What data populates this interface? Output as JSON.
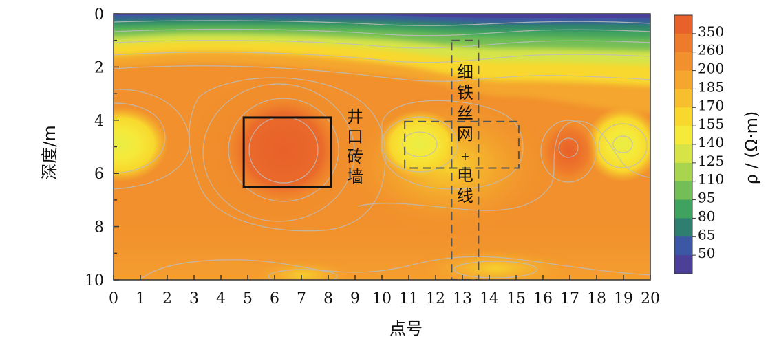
{
  "chart_data": {
    "type": "heatmap",
    "xlabel": "点号",
    "ylabel": "深度/m",
    "colorbar_label": "ρ / (Ω·m)",
    "xlim": [
      0,
      20
    ],
    "ylim": [
      10,
      0
    ],
    "x_ticks": [
      "0",
      "1",
      "2",
      "3",
      "4",
      "5",
      "6",
      "7",
      "8",
      "9",
      "10",
      "11",
      "12",
      "13",
      "14",
      "15",
      "16",
      "17",
      "18",
      "19",
      "20"
    ],
    "y_ticks": [
      "0",
      "2",
      "4",
      "6",
      "8",
      "10"
    ],
    "colorbar_levels": [
      "350",
      "260",
      "200",
      "185",
      "170",
      "155",
      "140",
      "125",
      "110",
      "95",
      "80",
      "65",
      "50"
    ],
    "colorbar_colors": [
      "#E8602A",
      "#EE7A2B",
      "#F1902C",
      "#F4A62E",
      "#F7BF2E",
      "#F8D82D",
      "#F5EA3A",
      "#D6E448",
      "#A9D44E",
      "#73BE57",
      "#3FA25E",
      "#2E7F6F",
      "#3C57A3",
      "#4B3F98"
    ],
    "annotations": [
      {
        "name": "well-brick-wall",
        "text": "井口砖墙",
        "style": "solid",
        "x0": 4.85,
        "x1": 8.1,
        "y0": 3.9,
        "y1": 6.5
      },
      {
        "name": "wire-mesh-horizontal",
        "text": "",
        "style": "dashed",
        "x0": 10.85,
        "x1": 15.1,
        "y0": 4.05,
        "y1": 5.8
      },
      {
        "name": "wire-mesh-vertical",
        "text": "细铁丝网+电线",
        "style": "dashed",
        "x0": 12.6,
        "x1": 13.6,
        "y0": 1.0,
        "y1": 10.0
      }
    ]
  }
}
